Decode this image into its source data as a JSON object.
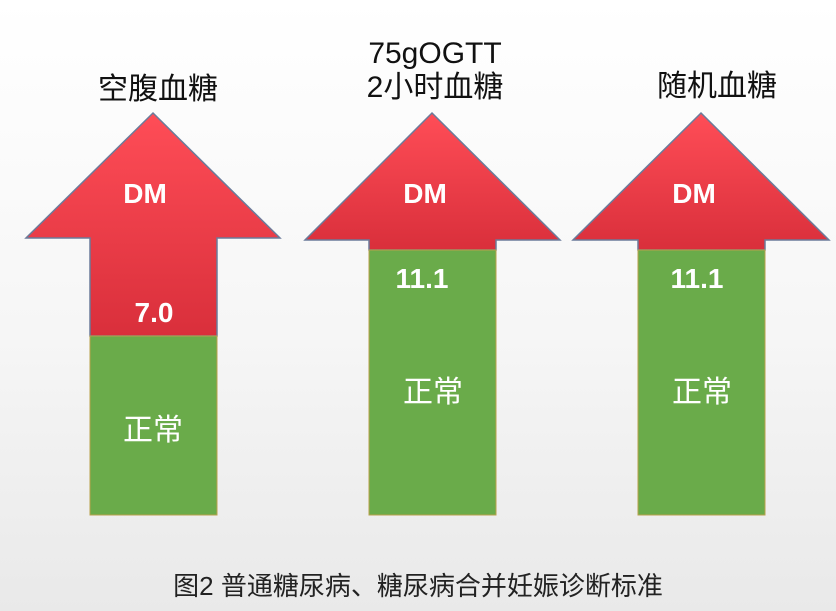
{
  "colors": {
    "dm_red": "#ee3d49",
    "normal_green": "#6aab4a",
    "outline": "#6b7b9a"
  },
  "columns": [
    {
      "title_lines": [
        "空腹血糖"
      ],
      "dm_label": "DM",
      "threshold": "7.0",
      "normal_label": "正常"
    },
    {
      "title_lines": [
        "75gOGTT",
        "2小时血糖"
      ],
      "dm_label": "DM",
      "threshold": "11.1",
      "normal_label": "正常"
    },
    {
      "title_lines": [
        "随机血糖"
      ],
      "dm_label": "DM",
      "threshold": "11.1",
      "normal_label": "正常"
    }
  ],
  "caption": "图2  普通糖尿病、糖尿病合并妊娠诊断标准"
}
